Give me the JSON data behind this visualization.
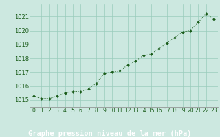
{
  "x": [
    0,
    1,
    2,
    3,
    4,
    5,
    6,
    7,
    8,
    9,
    10,
    11,
    12,
    13,
    14,
    15,
    16,
    17,
    18,
    19,
    20,
    21,
    22,
    23
  ],
  "y": [
    1015.3,
    1015.1,
    1015.1,
    1015.3,
    1015.5,
    1015.6,
    1015.6,
    1015.8,
    1016.2,
    1016.9,
    1017.0,
    1017.1,
    1017.5,
    1017.8,
    1018.2,
    1018.3,
    1018.7,
    1019.1,
    1019.5,
    1019.9,
    1020.0,
    1020.6,
    1021.2,
    1020.8
  ],
  "line_color": "#1a5c1a",
  "marker_color": "#1a5c1a",
  "bg_color": "#cce8e0",
  "grid_color": "#99ccbb",
  "axis_label_color": "#1a5c1a",
  "tick_label_color": "#1a5c1a",
  "bottom_bar_color": "#3a7a3a",
  "title": "Graphe pression niveau de la mer (hPa)",
  "yticks": [
    1015,
    1016,
    1017,
    1018,
    1019,
    1020,
    1021
  ],
  "ylim": [
    1014.5,
    1021.9
  ],
  "xlim": [
    -0.5,
    23.5
  ],
  "title_fontsize": 7.5,
  "tick_fontsize": 6.0,
  "xtick_fontsize": 5.5
}
